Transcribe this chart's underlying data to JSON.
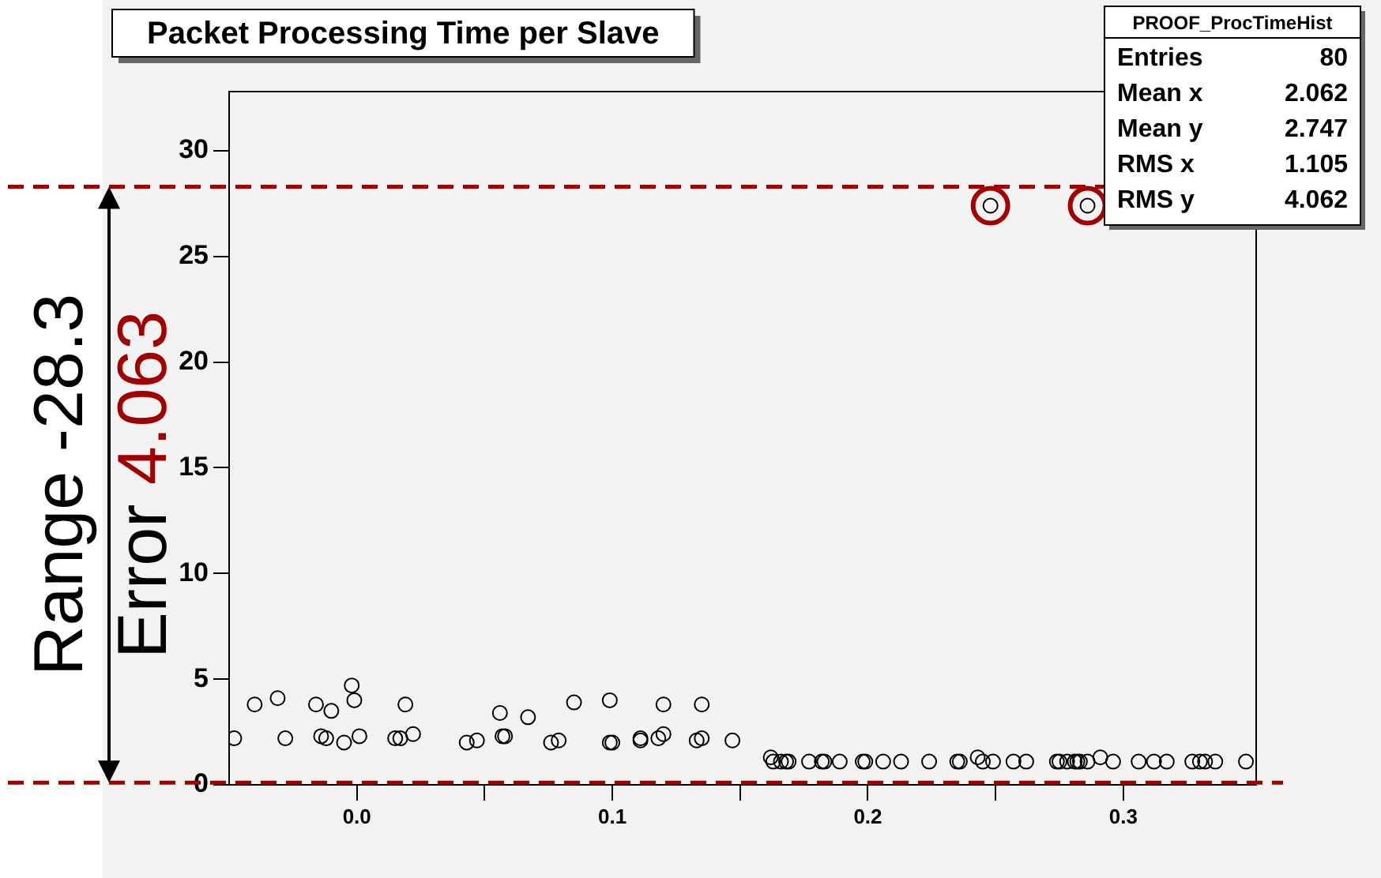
{
  "chart_data": {
    "type": "scatter",
    "title": "Packet Processing Time per Slave",
    "series": [
      {
        "color": "#000000",
        "marker": "circle",
        "x": [
          -0.048,
          -0.04,
          -0.031,
          -0.028,
          -0.016,
          -0.014,
          -0.012,
          -0.01,
          -0.005,
          -0.002,
          -0.001,
          0.001,
          0.015,
          0.017,
          0.019,
          0.022,
          0.043,
          0.047,
          0.056,
          0.057,
          0.058,
          0.067,
          0.076,
          0.079,
          0.085,
          0.099,
          0.099,
          0.1,
          0.111,
          0.111,
          0.118,
          0.12,
          0.12,
          0.133,
          0.135,
          0.135,
          0.147,
          0.162,
          0.163,
          0.166,
          0.168,
          0.169,
          0.177,
          0.182,
          0.183,
          0.189,
          0.198,
          0.199,
          0.206,
          0.213,
          0.224,
          0.235,
          0.236,
          0.243,
          0.245,
          0.249,
          0.257,
          0.262,
          0.274,
          0.275,
          0.278,
          0.281,
          0.282,
          0.283,
          0.286,
          0.291,
          0.296,
          0.306,
          0.312,
          0.317,
          0.327,
          0.33,
          0.332,
          0.336,
          0.348,
          0.248,
          0.286
        ],
        "values": [
          2.2,
          3.8,
          4.1,
          2.2,
          3.8,
          2.3,
          2.2,
          3.5,
          2.0,
          4.7,
          4.0,
          2.3,
          2.2,
          2.2,
          3.8,
          2.4,
          2.0,
          2.1,
          3.4,
          2.3,
          2.3,
          3.2,
          2.0,
          2.1,
          3.9,
          4.0,
          2.0,
          2.0,
          2.2,
          2.1,
          2.2,
          2.4,
          3.8,
          2.1,
          3.8,
          2.2,
          2.1,
          1.3,
          1.1,
          1.1,
          1.1,
          1.1,
          1.1,
          1.1,
          1.1,
          1.1,
          1.1,
          1.1,
          1.1,
          1.1,
          1.1,
          1.1,
          1.1,
          1.3,
          1.1,
          1.1,
          1.1,
          1.1,
          1.1,
          1.1,
          1.1,
          1.1,
          1.1,
          1.1,
          1.1,
          1.3,
          1.1,
          1.1,
          1.1,
          1.1,
          1.1,
          1.1,
          1.1,
          1.1,
          1.1,
          27.4,
          27.4
        ]
      },
      {
        "color": "#a00000",
        "marker": "circle",
        "x": [
          0.248,
          0.286
        ],
        "values": [
          27.4,
          27.4
        ]
      }
    ],
    "xlim": [
      -0.05,
      0.352
    ],
    "xticks": [
      {
        "value": 0,
        "label": "0.0"
      },
      {
        "value": 0.05,
        "label": null
      },
      {
        "value": 0.1,
        "label": "0.1"
      },
      {
        "value": 0.15,
        "label": null
      },
      {
        "value": 0.2,
        "label": "0.2"
      },
      {
        "value": 0.25,
        "label": null
      },
      {
        "value": 0.3,
        "label": "0.3"
      }
    ],
    "ylim": [
      0,
      32.8
    ],
    "yticks": [
      0,
      5,
      10,
      15,
      20,
      25,
      30
    ],
    "grid": false,
    "legend": false,
    "ref_lines": [
      {
        "axis": "y",
        "value": 28.3,
        "color": "#a00000",
        "line_style": "dashed"
      },
      {
        "axis": "y",
        "value": 0.1,
        "color": "#a00000",
        "line_style": "dashed"
      }
    ],
    "annotations": [
      "Range -28.3",
      "Error 4.063",
      "PROOF_ProcTimeHist",
      "Entries 80",
      "Mean x 2.062",
      "Mean y 2.747",
      "RMS x 1.105",
      "RMS y 4.062"
    ]
  }
}
